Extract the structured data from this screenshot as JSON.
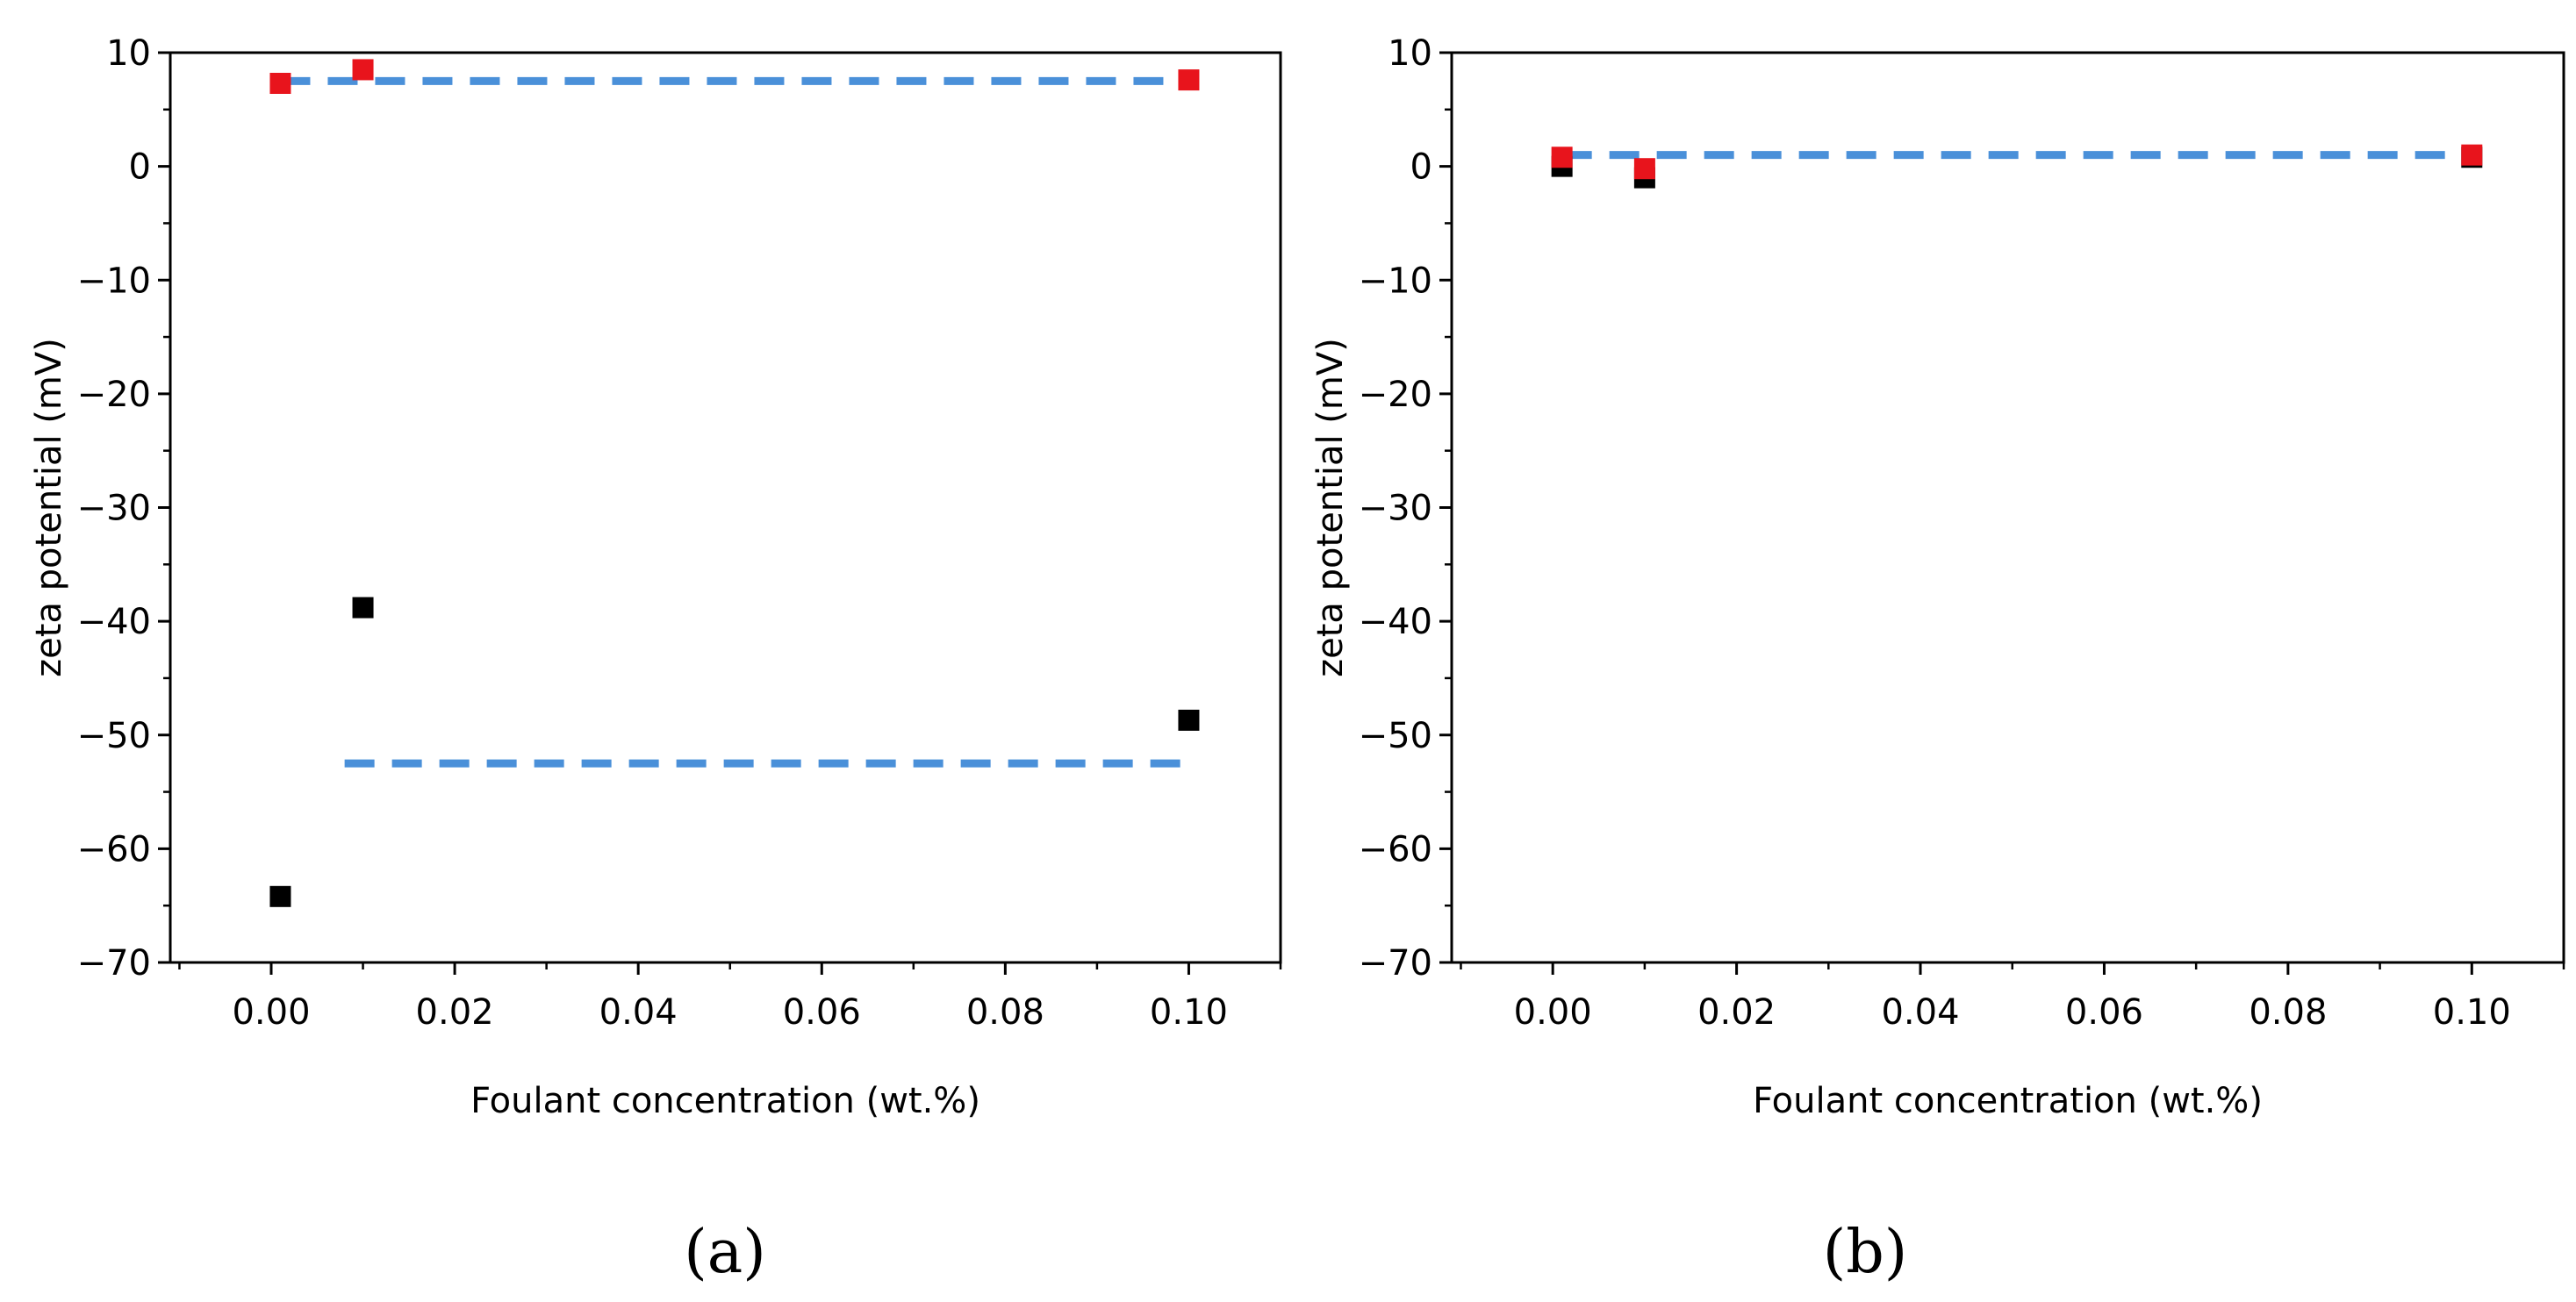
{
  "chart_data": [
    {
      "type": "scatter",
      "panel_label": "(a)",
      "xlabel": "Foulant concentration (wt.%)",
      "ylabel": "zeta potential (mV)",
      "xlim": [
        -0.011,
        0.11
      ],
      "ylim": [
        -70,
        10
      ],
      "xticks": [
        0.0,
        0.02,
        0.04,
        0.06,
        0.08,
        0.1
      ],
      "xtick_labels": [
        "0.00",
        "0.02",
        "0.04",
        "0.06",
        "0.08",
        "0.10"
      ],
      "yticks": [
        10,
        0,
        -10,
        -20,
        -30,
        -40,
        -50,
        -60,
        -70
      ],
      "ytick_labels": [
        "10",
        "0",
        "−10",
        "−20",
        "−30",
        "−40",
        "−50",
        "−60",
        "−70"
      ],
      "grid": false,
      "series": [
        {
          "name": "black series",
          "color": "#000000",
          "marker": "square",
          "points": [
            {
              "x": 0.001,
              "y": -64.2
            },
            {
              "x": 0.01,
              "y": -38.8
            },
            {
              "x": 0.1,
              "y": -48.7
            }
          ]
        },
        {
          "name": "red series",
          "color": "#e8141c",
          "marker": "square",
          "points": [
            {
              "x": 0.001,
              "y": 7.3
            },
            {
              "x": 0.01,
              "y": 8.5
            },
            {
              "x": 0.1,
              "y": 7.6
            }
          ]
        }
      ],
      "reference_lines": [
        {
          "y": 7.5,
          "x_from": 0.001,
          "x_to": 0.1,
          "color": "#4a90d9",
          "style": "dashed"
        },
        {
          "y": -52.5,
          "x_from": 0.008,
          "x_to": 0.1,
          "color": "#4a90d9",
          "style": "dashed"
        }
      ]
    },
    {
      "type": "scatter",
      "panel_label": "(b)",
      "xlabel": "Foulant concentration (wt.%)",
      "ylabel": "zeta potential (mV)",
      "xlim": [
        -0.011,
        0.11
      ],
      "ylim": [
        -70,
        10
      ],
      "xticks": [
        0.0,
        0.02,
        0.04,
        0.06,
        0.08,
        0.1
      ],
      "xtick_labels": [
        "0.00",
        "0.02",
        "0.04",
        "0.06",
        "0.08",
        "0.10"
      ],
      "yticks": [
        10,
        0,
        -10,
        -20,
        -30,
        -40,
        -50,
        -60,
        -70
      ],
      "ytick_labels": [
        "10",
        "0",
        "−10",
        "−20",
        "−30",
        "−40",
        "−50",
        "−60",
        "−70"
      ],
      "grid": false,
      "series": [
        {
          "name": "black series",
          "color": "#000000",
          "marker": "square",
          "points": [
            {
              "x": 0.001,
              "y": 0.0
            },
            {
              "x": 0.01,
              "y": -1.0
            },
            {
              "x": 0.1,
              "y": 0.8
            }
          ]
        },
        {
          "name": "red series",
          "color": "#e8141c",
          "marker": "square",
          "points": [
            {
              "x": 0.001,
              "y": 0.8
            },
            {
              "x": 0.01,
              "y": -0.2
            },
            {
              "x": 0.1,
              "y": 1.0
            }
          ]
        }
      ],
      "reference_lines": [
        {
          "y": 1.0,
          "x_from": 0.001,
          "x_to": 0.1,
          "color": "#4a90d9",
          "style": "dashed"
        }
      ]
    }
  ]
}
